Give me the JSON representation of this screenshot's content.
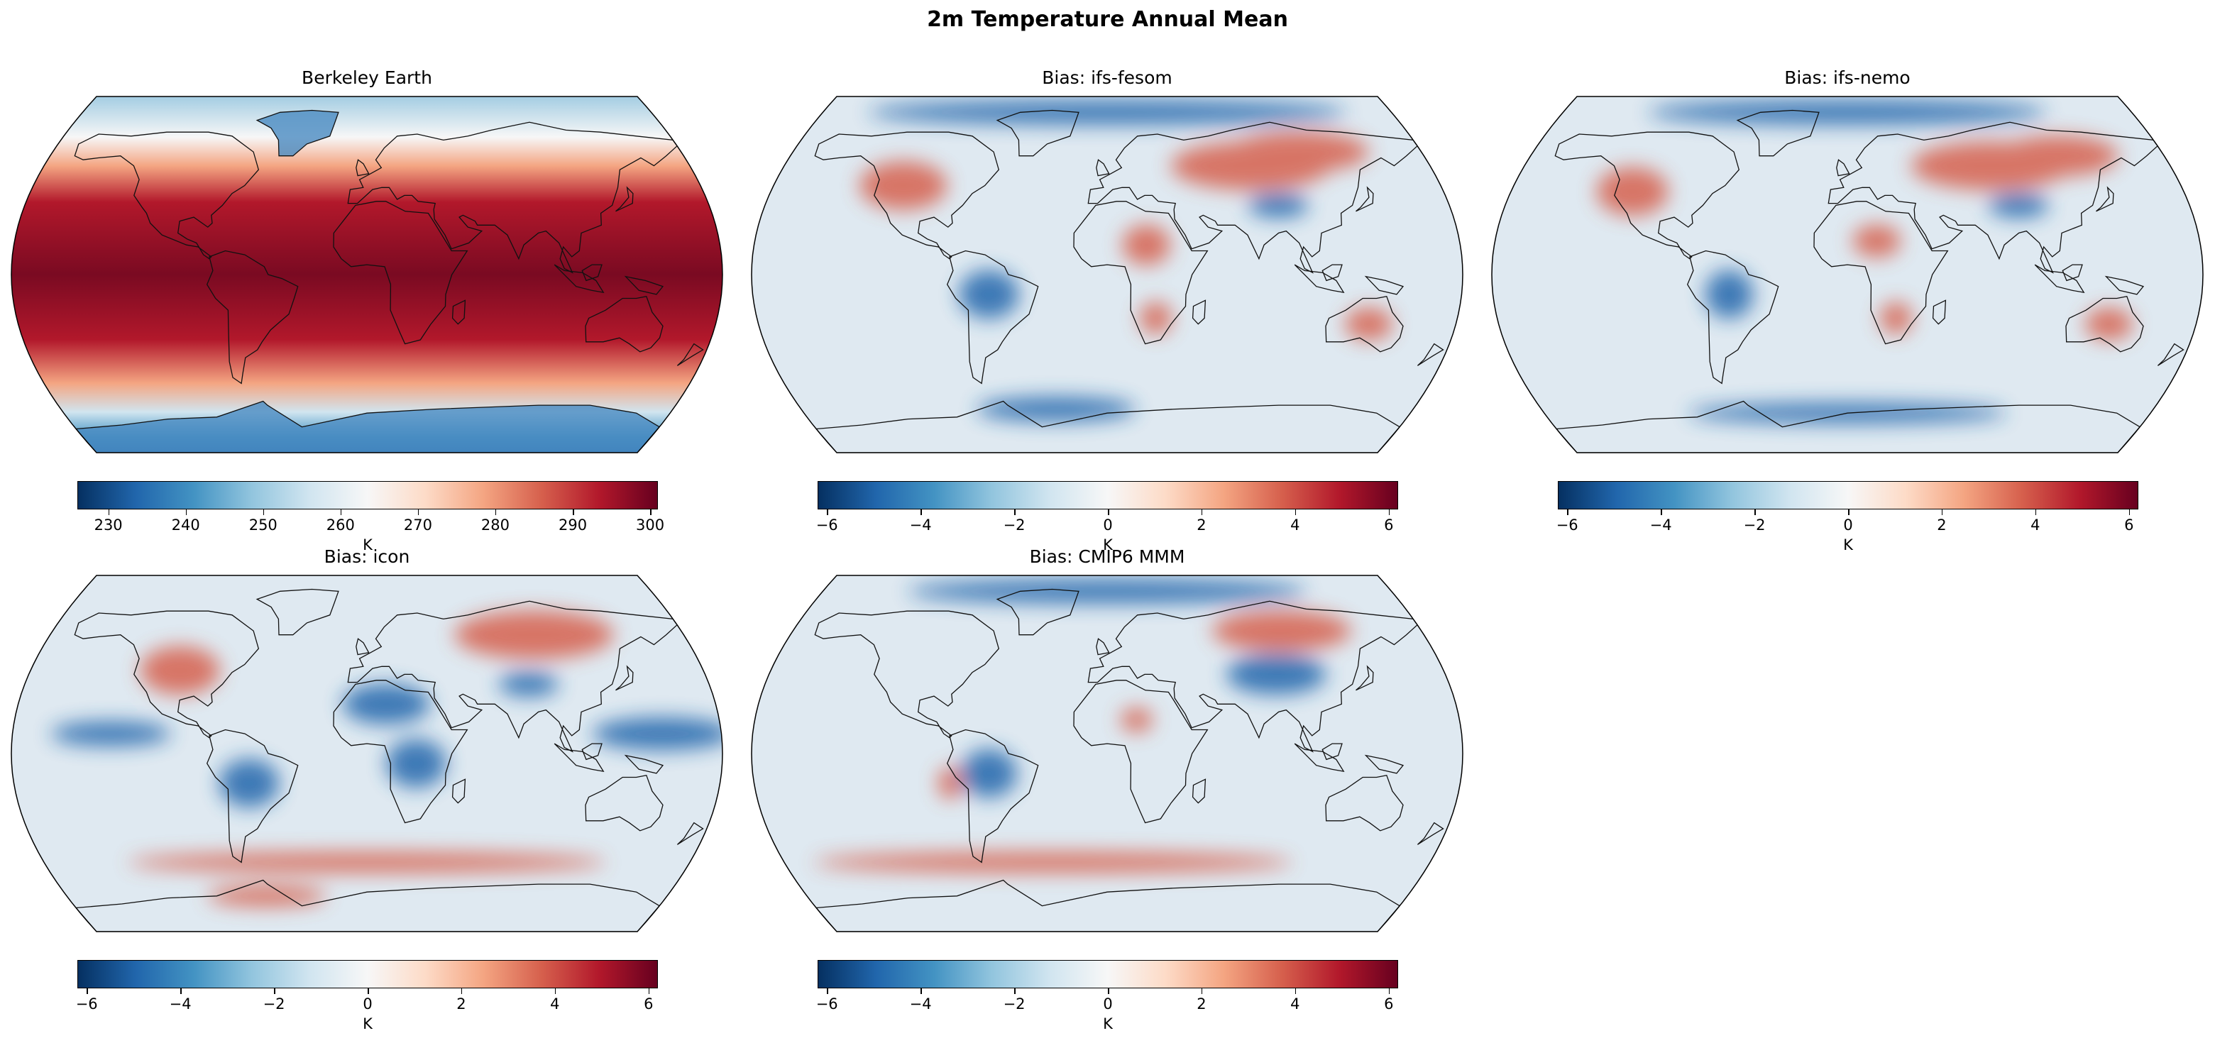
{
  "figure": {
    "title": "2m Temperature Annual Mean"
  },
  "colormap": {
    "name": "RdBu_r",
    "stops": [
      "#053061",
      "#2166ac",
      "#4393c3",
      "#92c5de",
      "#d1e5f0",
      "#f7f7f7",
      "#fddbc7",
      "#f4a582",
      "#d6604d",
      "#b2182b",
      "#67001f"
    ]
  },
  "panels": [
    {
      "title": "Berkeley Earth",
      "kind": "absolute",
      "colorbar": {
        "label": "K",
        "vmin": 226,
        "vmax": 301,
        "ticks": [
          "230",
          "240",
          "250",
          "260",
          "270",
          "280",
          "290",
          "300"
        ],
        "tick_values": [
          230,
          240,
          250,
          260,
          270,
          280,
          290,
          300
        ]
      }
    },
    {
      "title": "Bias: ifs-fesom",
      "kind": "bias",
      "colorbar": {
        "label": "K",
        "vmin": -6.2,
        "vmax": 6.2,
        "ticks": [
          "−6",
          "−4",
          "−2",
          "0",
          "2",
          "4",
          "6"
        ],
        "tick_values": [
          -6,
          -4,
          -2,
          0,
          2,
          4,
          6
        ]
      }
    },
    {
      "title": "Bias: ifs-nemo",
      "kind": "bias",
      "colorbar": {
        "label": "K",
        "vmin": -6.2,
        "vmax": 6.2,
        "ticks": [
          "−6",
          "−4",
          "−2",
          "0",
          "2",
          "4",
          "6"
        ],
        "tick_values": [
          -6,
          -4,
          -2,
          0,
          2,
          4,
          6
        ]
      }
    },
    {
      "title": "Bias: icon",
      "kind": "bias",
      "colorbar": {
        "label": "K",
        "vmin": -6.2,
        "vmax": 6.2,
        "ticks": [
          "−6",
          "−4",
          "−2",
          "0",
          "2",
          "4",
          "6"
        ],
        "tick_values": [
          -6,
          -4,
          -2,
          0,
          2,
          4,
          6
        ]
      }
    },
    {
      "title": "Bias: CMIP6 MMM",
      "kind": "bias",
      "colorbar": {
        "label": "K",
        "vmin": -6.2,
        "vmax": 6.2,
        "ticks": [
          "−6",
          "−4",
          "−2",
          "0",
          "2",
          "4",
          "6"
        ],
        "tick_values": [
          -6,
          -4,
          -2,
          0,
          2,
          4,
          6
        ]
      }
    }
  ]
}
